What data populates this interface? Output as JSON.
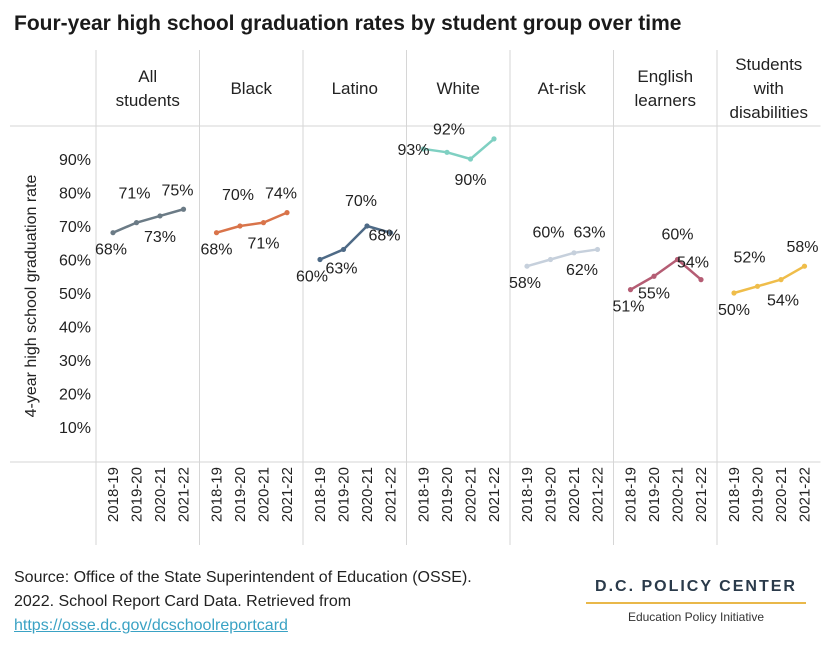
{
  "title": "Four-year high school graduation rates by student group over time",
  "source": {
    "line1": "Source: Office of the State Superintendent of Education (OSSE).",
    "line2": "2022. School Report Card Data. Retrieved from",
    "link": "https://osse.dc.gov/dcschoolreportcard"
  },
  "brand": {
    "name": "D.C. POLICY CENTER",
    "subtitle": "Education Policy Initiative",
    "accent": "#e9b84a"
  },
  "chart_data": {
    "type": "line",
    "ylabel": "4-year high school graduation rate",
    "ylim": [
      0,
      100
    ],
    "yticks": [
      10,
      20,
      30,
      40,
      50,
      60,
      70,
      80,
      90
    ],
    "ytick_labels": [
      "10%",
      "20%",
      "30%",
      "40%",
      "50%",
      "60%",
      "70%",
      "80%",
      "90%"
    ],
    "categories": [
      "2018-19",
      "2019-20",
      "2020-21",
      "2021-22"
    ],
    "grid": false,
    "series": [
      {
        "name": "All students",
        "header": [
          "All",
          "students"
        ],
        "color": "#6b7b86",
        "values": [
          68,
          71,
          73,
          75
        ],
        "labels": [
          "68%",
          "71%",
          "73%",
          "75%"
        ]
      },
      {
        "name": "Black",
        "header": [
          "Black"
        ],
        "color": "#d9744a",
        "values": [
          68,
          70,
          71,
          74
        ],
        "labels": [
          "68%",
          "70%",
          "71%",
          "74%"
        ]
      },
      {
        "name": "Latino",
        "header": [
          "Latino"
        ],
        "color": "#4e6a86",
        "values": [
          60,
          63,
          70,
          68
        ],
        "labels": [
          "60%",
          "63%",
          "70%",
          "68%"
        ]
      },
      {
        "name": "White",
        "header": [
          "White"
        ],
        "color": "#7fd0c2",
        "values": [
          93,
          92,
          90,
          96
        ],
        "labels": [
          "93%",
          "92%",
          "90%",
          ""
        ]
      },
      {
        "name": "At-risk",
        "header": [
          "At-risk"
        ],
        "color": "#c6d0dc",
        "values": [
          58,
          60,
          62,
          63
        ],
        "labels": [
          "58%",
          "60%",
          "62%",
          "63%"
        ]
      },
      {
        "name": "English learners",
        "header": [
          "English",
          "learners"
        ],
        "color": "#b55d74",
        "values": [
          51,
          55,
          60,
          54
        ],
        "labels": [
          "51%",
          "55%",
          "60%",
          "54%"
        ]
      },
      {
        "name": "Students with disabilities",
        "header": [
          "Students",
          "with",
          "disabilities"
        ],
        "color": "#efbd4a",
        "values": [
          50,
          52,
          54,
          58
        ],
        "labels": [
          "50%",
          "52%",
          "54%",
          "58%"
        ]
      }
    ]
  }
}
